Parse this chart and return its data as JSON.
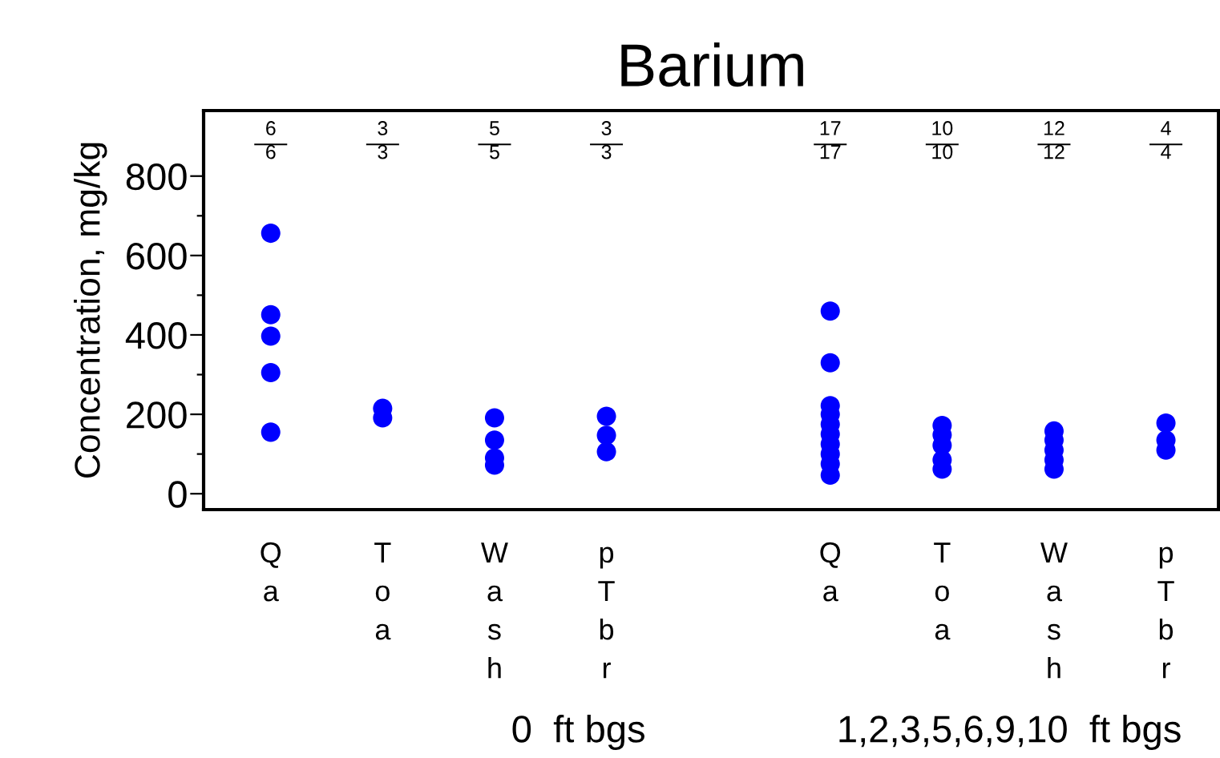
{
  "chart_data": [
    {
      "type": "scatter",
      "title": "Barium",
      "ylabel": "Concentration, mg/kg",
      "categories": [
        "Q\na",
        "T\no\na",
        "W\na\ns\nh",
        "p\nT\nb\nr"
      ],
      "marker": "circle",
      "series": [
        {
          "color": "#0000ff",
          "x": [
            "Q\na",
            "Q\na",
            "Q\na",
            "Q\na",
            "Q\na"
          ],
          "values": [
            656,
            451,
            397,
            305,
            155
          ]
        },
        {
          "color": "#0000ff",
          "x": [
            "T\no\na",
            "T\no\na"
          ],
          "values": [
            215,
            191
          ]
        },
        {
          "color": "#0000ff",
          "x": [
            "W\na\ns\nh",
            "W\na\ns\nh",
            "W\na\ns\nh",
            "W\na\ns\nh"
          ],
          "values": [
            191,
            135,
            90,
            72
          ]
        },
        {
          "color": "#0000ff",
          "x": [
            "p\nT\nb\nr",
            "p\nT\nb\nr",
            "p\nT\nb\nr"
          ],
          "values": [
            195,
            147,
            106
          ]
        }
      ],
      "ylim": [
        -40,
        965
      ],
      "yticks": [
        0,
        {
          "value": 100,
          "label": null
        },
        200,
        {
          "value": 300,
          "label": null
        },
        400,
        {
          "value": 500,
          "label": null
        },
        600,
        {
          "value": 700,
          "label": null
        },
        800
      ],
      "grid": false,
      "annotations": [
        "6\n6",
        "3\n3",
        "5\n5",
        "3\n3",
        "0  ft bgs"
      ]
    },
    {
      "type": "scatter",
      "categories": [
        "Q\na",
        "T\no\na",
        "W\na\ns\nh",
        "p\nT\nb\nr"
      ],
      "marker": "circle",
      "series": [
        {
          "color": "#0000ff",
          "x": [
            "Q\na",
            "Q\na",
            "Q\na",
            "Q\na",
            "Q\na",
            "Q\na",
            "Q\na",
            "Q\na",
            "Q\na",
            "Q\na"
          ],
          "values": [
            460,
            330,
            222,
            200,
            175,
            150,
            125,
            100,
            75,
            47
          ]
        },
        {
          "color": "#0000ff",
          "x": [
            "T\no\na",
            "T\no\na",
            "T\no\na",
            "T\no\na",
            "T\no\na"
          ],
          "values": [
            172,
            148,
            122,
            85,
            62
          ]
        },
        {
          "color": "#0000ff",
          "x": [
            "W\na\ns\nh",
            "W\na\ns\nh",
            "W\na\ns\nh",
            "W\na\ns\nh",
            "W\na\ns\nh"
          ],
          "values": [
            158,
            135,
            110,
            85,
            62
          ]
        },
        {
          "color": "#0000ff",
          "x": [
            "p\nT\nb\nr",
            "p\nT\nb\nr",
            "p\nT\nb\nr"
          ],
          "values": [
            178,
            135,
            110
          ]
        }
      ],
      "ylim": [
        -40,
        965
      ],
      "grid": false,
      "tick_labels": "x",
      "annotations": [
        "17\n17",
        "10\n10",
        "12\n12",
        "4\n4",
        "1,2,3,5,6,9,10  ft bgs"
      ]
    }
  ]
}
